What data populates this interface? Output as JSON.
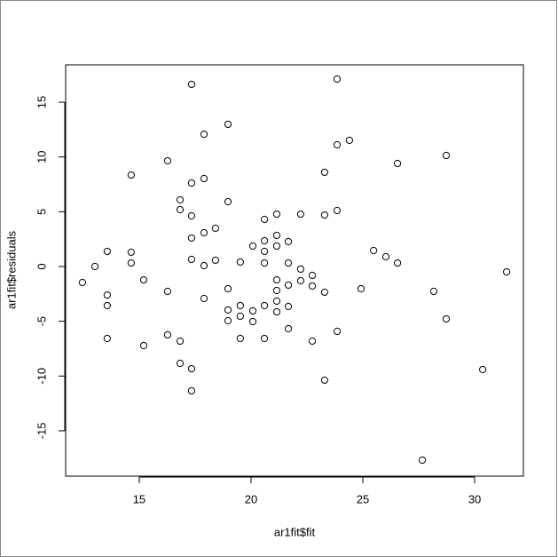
{
  "chart_data": {
    "type": "scatter",
    "x_label": "ar1fit$fit",
    "y_label": "ar1fit$residuals",
    "x": [
      12.46,
      13.02,
      13.57,
      13.57,
      13.57,
      13.57,
      14.64,
      14.64,
      14.64,
      15.2,
      15.2,
      16.27,
      16.27,
      16.27,
      16.83,
      16.83,
      16.83,
      16.83,
      17.34,
      17.34,
      17.34,
      17.34,
      17.34,
      17.34,
      17.34,
      17.9,
      17.9,
      17.9,
      17.9,
      17.9,
      18.41,
      18.41,
      18.97,
      18.97,
      18.97,
      18.97,
      18.97,
      19.52,
      19.52,
      19.52,
      19.52,
      20.08,
      20.08,
      20.08,
      20.6,
      20.6,
      20.6,
      20.6,
      20.6,
      20.6,
      21.15,
      21.15,
      21.15,
      21.15,
      21.15,
      21.15,
      21.15,
      21.67,
      21.67,
      21.67,
      21.67,
      21.67,
      22.22,
      22.22,
      22.22,
      22.74,
      22.74,
      22.74,
      23.29,
      23.29,
      23.29,
      23.29,
      23.85,
      23.85,
      23.85,
      23.85,
      24.4,
      24.92,
      25.48,
      26.03,
      26.55,
      26.55,
      27.66,
      28.17,
      28.73,
      28.73,
      30.36,
      31.43
    ],
    "values": [
      -1.46,
      0,
      1.38,
      -2.6,
      -3.57,
      -6.57,
      8.35,
      1.3,
      0.32,
      -1.22,
      -7.22,
      9.65,
      -2.27,
      -6.24,
      6.08,
      5.19,
      -6.81,
      -8.84,
      16.63,
      7.62,
      4.62,
      2.6,
      0.65,
      -9.33,
      -11.35,
      12.08,
      8.03,
      3.08,
      0.08,
      -2.92,
      3.49,
      0.57,
      12.98,
      5.92,
      -2.03,
      -3.97,
      -4.95,
      0.41,
      -3.57,
      -4.54,
      -6.57,
      1.87,
      -4.05,
      -5.03,
      4.3,
      2.35,
      1.38,
      0.32,
      -3.57,
      -6.57,
      4.78,
      2.84,
      1.87,
      -1.22,
      -2.19,
      -3.16,
      -4.14,
      2.27,
      0.32,
      -1.7,
      -3.65,
      -5.68,
      4.78,
      -0.24,
      -1.3,
      -0.81,
      -1.78,
      -6.81,
      8.6,
      4.7,
      -2.35,
      -10.38,
      17.11,
      11.11,
      5.11,
      -5.92,
      11.52,
      -2.03,
      1.46,
      0.89,
      9.41,
      0.32,
      -17.68,
      -2.27,
      10.14,
      -4.78,
      -9.41,
      -0.49
    ],
    "xlim": [
      11.71,
      32.18
    ],
    "ylim": [
      -19.14,
      18.41
    ],
    "xticks": [
      15,
      20,
      25,
      30
    ],
    "yticks": [
      -15,
      -10,
      -5,
      0,
      5,
      10,
      15
    ],
    "color": "#000000"
  }
}
